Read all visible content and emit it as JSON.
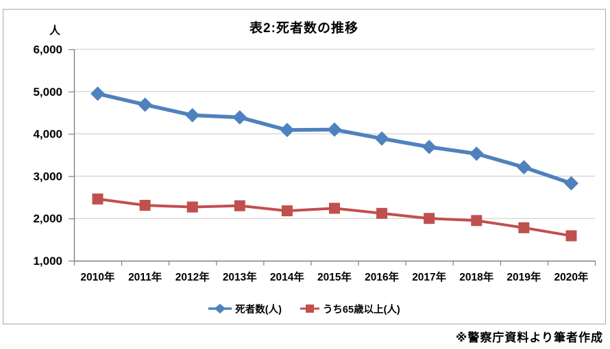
{
  "title": "表2:死者数の推移",
  "y_axis_unit": "人",
  "footnote": "※警察庁資料より筆者作成",
  "colors": {
    "frame_border": "#A6A6A6",
    "gridline": "#C9C9C9",
    "axis": "#7F7F7F",
    "text": "#000000",
    "series_deaths": "#4F81BD",
    "series_elderly": "#C0504D"
  },
  "chart_data": {
    "type": "line",
    "title": "表2:死者数の推移",
    "categories": [
      "2010年",
      "2011年",
      "2012年",
      "2013年",
      "2014年",
      "2015年",
      "2016年",
      "2017年",
      "2018年",
      "2019年",
      "2020年"
    ],
    "series": [
      {
        "name": "死者数(人)",
        "color": "#4F81BD",
        "marker": "diamond",
        "values": [
          4950,
          4690,
          4440,
          4390,
          4090,
          4100,
          3890,
          3690,
          3530,
          3210,
          2830
        ]
      },
      {
        "name": "うち65歳以上(人)",
        "color": "#C0504D",
        "marker": "square",
        "values": [
          2460,
          2310,
          2270,
          2300,
          2180,
          2240,
          2120,
          2000,
          1950,
          1780,
          1590
        ]
      }
    ],
    "xlabel": "",
    "ylabel": "人",
    "ylim": [
      1000,
      6000
    ],
    "y_ticks": [
      1000,
      2000,
      3000,
      4000,
      5000,
      6000
    ],
    "y_tick_labels": [
      "1,000",
      "2,000",
      "3,000",
      "4,000",
      "5,000",
      "6,000"
    ],
    "grid": true,
    "legend_position": "bottom"
  }
}
